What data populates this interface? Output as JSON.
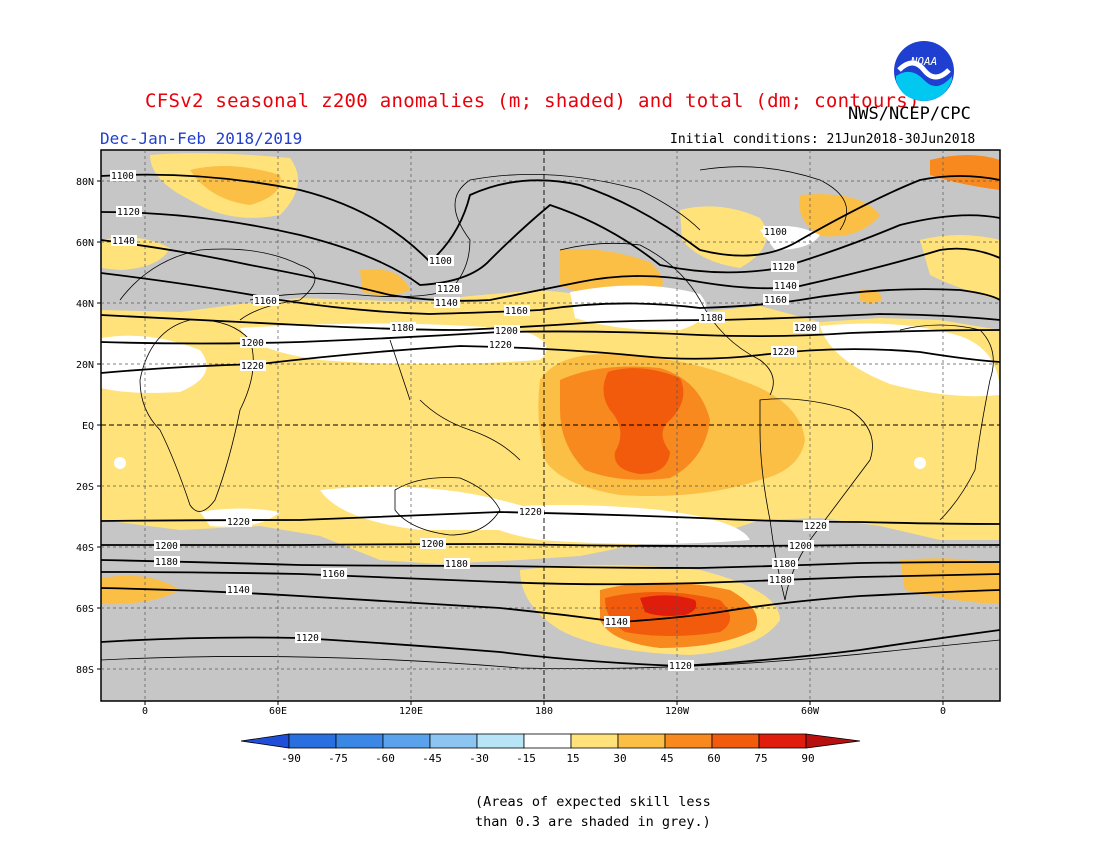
{
  "header": {
    "title": "CFSv2 seasonal z200 anomalies (m; shaded) and total (dm; contours)",
    "agency": "NWS/NCEP/CPC",
    "season": "Dec-Jan-Feb 2018/2019",
    "initial_conditions": "Initial conditions: 21Jun2018-30Jun2018",
    "logo_text": "NOAA"
  },
  "map": {
    "lat_labels": [
      "80N",
      "60N",
      "40N",
      "20N",
      "EQ",
      "20S",
      "40S",
      "60S",
      "80S"
    ],
    "lon_labels": [
      "0",
      "60E",
      "120E",
      "180",
      "120W",
      "60W",
      "0"
    ],
    "contour_labels": [
      "1100",
      "1120",
      "1140",
      "1160",
      "1180",
      "1200",
      "1220"
    ]
  },
  "colorbar": {
    "levels": [
      "-90",
      "-75",
      "-60",
      "-45",
      "-30",
      "-15",
      "15",
      "30",
      "45",
      "60",
      "75",
      "90"
    ],
    "colors": {
      "below": "#1f4fd8",
      "n90": "#2a6fe0",
      "n75": "#3b87e6",
      "n60": "#5aa3ec",
      "n45": "#8cc4f2",
      "n30": "#b8e4f7",
      "n15": "#ffffff",
      "p15": "#ffe27a",
      "p30": "#fbbf45",
      "p45": "#f7891f",
      "p60": "#f25a0c",
      "p75": "#e01c0c",
      "above": "#b80f0f"
    }
  },
  "colors": {
    "skill_grey": "#c6c6c6",
    "land_outline": "#000000"
  },
  "footnote": {
    "line1": "(Areas of expected skill less",
    "line2": "than 0.3 are shaded in grey.)"
  }
}
